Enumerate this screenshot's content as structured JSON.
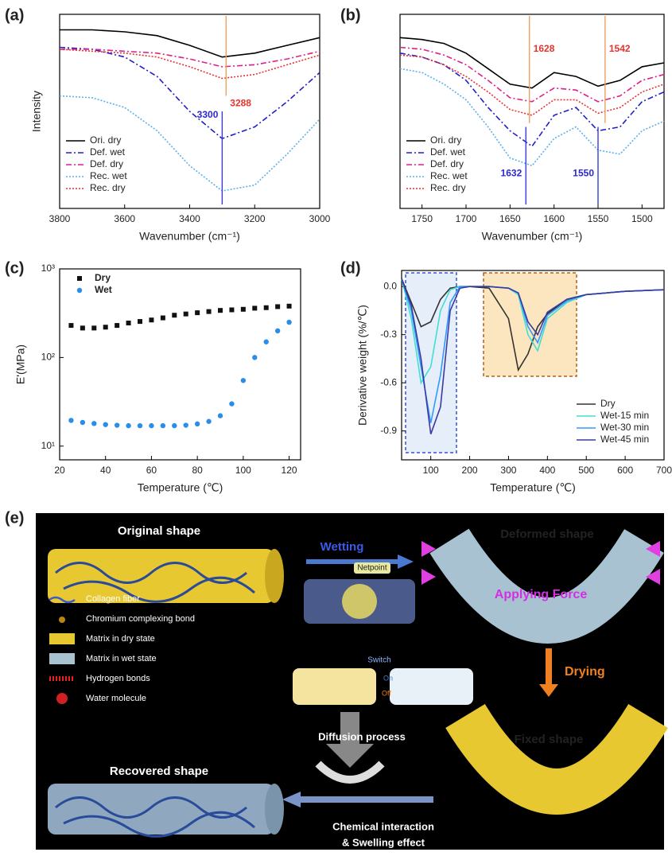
{
  "chart_data": [
    {
      "type": "line",
      "panel": "(a)",
      "x_label": "Wavenumber (cm⁻¹)",
      "y_label": "Intensity",
      "xlim": [
        3800,
        3000
      ],
      "xticks": [
        3800,
        3600,
        3400,
        3200,
        3000
      ],
      "ylim": [
        0,
        100
      ],
      "legend": "lower left",
      "x": [
        3800,
        3700,
        3600,
        3500,
        3400,
        3300,
        3200,
        3100,
        3000
      ],
      "series": [
        {
          "name": "Ori. dry",
          "color": "#000000",
          "style": "solid",
          "values": [
            92,
            92,
            91,
            89,
            84,
            78,
            80,
            84,
            88
          ]
        },
        {
          "name": "Def. wet",
          "color": "#2020c8",
          "style": "dashdot",
          "values": [
            83,
            82,
            78,
            68,
            50,
            36,
            42,
            55,
            70
          ]
        },
        {
          "name": "Def. dry",
          "color": "#e0208a",
          "style": "dashdot",
          "values": [
            82,
            82,
            81,
            80,
            77,
            73,
            74,
            77,
            81
          ]
        },
        {
          "name": "Rec. wet",
          "color": "#5ab0ee",
          "style": "dotted",
          "values": [
            58,
            57,
            52,
            40,
            22,
            9,
            12,
            28,
            46
          ]
        },
        {
          "name": "Rec. dry",
          "color": "#e83030",
          "style": "dotted",
          "values": [
            82,
            81,
            80,
            78,
            73,
            67,
            69,
            74,
            79
          ]
        }
      ],
      "annotations": [
        {
          "value": 3288,
          "color": "#e8322d"
        },
        {
          "value": 3300,
          "color": "#2a2ad0"
        }
      ]
    },
    {
      "type": "line",
      "panel": "(b)",
      "x_label": "Wavenumber (cm⁻¹)",
      "xlim": [
        1775,
        1475
      ],
      "xticks": [
        1750,
        1700,
        1650,
        1600,
        1550,
        1500
      ],
      "ylim": [
        0,
        100
      ],
      "legend": "lower left",
      "x": [
        1775,
        1750,
        1725,
        1700,
        1675,
        1650,
        1625,
        1600,
        1575,
        1550,
        1525,
        1500,
        1475
      ],
      "series": [
        {
          "name": "Ori. dry",
          "color": "#000000",
          "style": "solid",
          "values": [
            88,
            87,
            85,
            80,
            72,
            64,
            62,
            70,
            68,
            63,
            66,
            73,
            75
          ]
        },
        {
          "name": "Def. wet",
          "color": "#2020c8",
          "style": "dashdot",
          "values": [
            80,
            78,
            74,
            66,
            52,
            40,
            32,
            48,
            52,
            40,
            42,
            55,
            60
          ]
        },
        {
          "name": "Def. dry",
          "color": "#e0208a",
          "style": "dashdot",
          "values": [
            83,
            82,
            79,
            74,
            66,
            57,
            55,
            62,
            61,
            55,
            58,
            66,
            69
          ]
        },
        {
          "name": "Rec. wet",
          "color": "#5ab0ee",
          "style": "dotted",
          "values": [
            72,
            70,
            64,
            56,
            42,
            26,
            22,
            36,
            42,
            30,
            28,
            40,
            45
          ]
        },
        {
          "name": "Rec. dry",
          "color": "#e83030",
          "style": "dotted",
          "values": [
            79,
            78,
            74,
            68,
            60,
            51,
            48,
            56,
            56,
            49,
            52,
            60,
            64
          ]
        }
      ],
      "annotations": [
        {
          "value": 1628,
          "color": "#e8322d"
        },
        {
          "value": 1542,
          "color": "#e8322d"
        },
        {
          "value": 1632,
          "color": "#2a2ad0"
        },
        {
          "value": 1550,
          "color": "#2a2ad0"
        }
      ]
    },
    {
      "type": "scatter",
      "panel": "(c)",
      "x_label": "Temperature (℃)",
      "y_label": "E'(MPa)",
      "log_y": true,
      "xlim": [
        20,
        125
      ],
      "xticks": [
        20,
        40,
        60,
        80,
        100,
        120
      ],
      "ylim": [
        7,
        1000
      ],
      "yticks": [
        {
          "value": 10,
          "label": "10¹"
        },
        {
          "value": 100,
          "label": "10²"
        },
        {
          "value": 1000,
          "label": "10³"
        }
      ],
      "legend": "upper left",
      "x": [
        25,
        30,
        35,
        40,
        45,
        50,
        55,
        60,
        65,
        70,
        75,
        80,
        85,
        90,
        95,
        100,
        105,
        110,
        115,
        120
      ],
      "series": [
        {
          "name": "Dry",
          "color": "#111111",
          "marker": "square",
          "values": [
            230,
            215,
            215,
            220,
            230,
            245,
            255,
            265,
            280,
            300,
            310,
            320,
            330,
            340,
            345,
            350,
            360,
            365,
            375,
            380
          ]
        },
        {
          "name": "Wet",
          "color": "#2a8ee8",
          "marker": "circle",
          "values": [
            19.5,
            18.5,
            18,
            17.5,
            17.2,
            17,
            17,
            17,
            17,
            17,
            17.2,
            17.8,
            19,
            22,
            30,
            55,
            100,
            150,
            200,
            250
          ]
        }
      ]
    },
    {
      "type": "line",
      "panel": "(d)",
      "x_label": "Temperature (℃)",
      "y_label": "Derivative weight (%/℃)",
      "xlim": [
        25,
        700
      ],
      "xticks": [
        100,
        200,
        300,
        400,
        500,
        600,
        700
      ],
      "ylim": [
        -1.08,
        0.1
      ],
      "yticks": [
        {
          "value": 0,
          "label": "0.0"
        },
        -0.3,
        -0.6,
        -0.9
      ],
      "legend": "lower right",
      "x": [
        25,
        50,
        75,
        100,
        125,
        150,
        175,
        200,
        250,
        300,
        325,
        350,
        375,
        400,
        450,
        500,
        600,
        700
      ],
      "series": [
        {
          "name": "Dry",
          "color": "#333333",
          "style": "solid",
          "values": [
            0.05,
            -0.1,
            -0.25,
            -0.22,
            -0.08,
            -0.01,
            0,
            0,
            -0.01,
            -0.2,
            -0.52,
            -0.42,
            -0.25,
            -0.17,
            -0.08,
            -0.05,
            -0.03,
            -0.02
          ]
        },
        {
          "name": "Wet-15 min",
          "color": "#40e0d0",
          "style": "solid",
          "values": [
            0.05,
            -0.2,
            -0.6,
            -0.5,
            -0.15,
            -0.02,
            0,
            0,
            0,
            -0.01,
            -0.05,
            -0.3,
            -0.4,
            -0.2,
            -0.1,
            -0.05,
            -0.03,
            -0.02
          ]
        },
        {
          "name": "Wet-30 min",
          "color": "#3399ff",
          "style": "solid",
          "values": [
            0.05,
            -0.15,
            -0.5,
            -0.85,
            -0.55,
            -0.1,
            0,
            0,
            0,
            -0.01,
            -0.04,
            -0.25,
            -0.35,
            -0.18,
            -0.09,
            -0.05,
            -0.03,
            -0.02
          ]
        },
        {
          "name": "Wet-45 min",
          "color": "#3a3aa0",
          "style": "solid",
          "values": [
            0.05,
            -0.12,
            -0.45,
            -0.92,
            -0.75,
            -0.15,
            -0.01,
            0,
            0,
            -0.01,
            -0.04,
            -0.22,
            -0.3,
            -0.16,
            -0.08,
            -0.05,
            -0.03,
            -0.02
          ]
        }
      ]
    }
  ],
  "diagram": {
    "panel": "(e)",
    "original": "Original shape",
    "wetting": "Wetting",
    "deformed": "Deformed shape",
    "netpoint": "Netpoint",
    "force": "Applying Force",
    "switch": "Switch",
    "on": "On",
    "off": "Off",
    "drying": "Drying",
    "diffusion": "Diffusion process",
    "fixed": "Fixed shape",
    "recovered": "Recovered shape",
    "chem": "Chemical interaction",
    "swell": "& Swelling effect",
    "legend": [
      "Collagen fiber",
      "Chromium complexing bond",
      "Matrix in dry state",
      "Matrix in wet state",
      "Hydrogen bonds",
      "Water molecule"
    ]
  }
}
